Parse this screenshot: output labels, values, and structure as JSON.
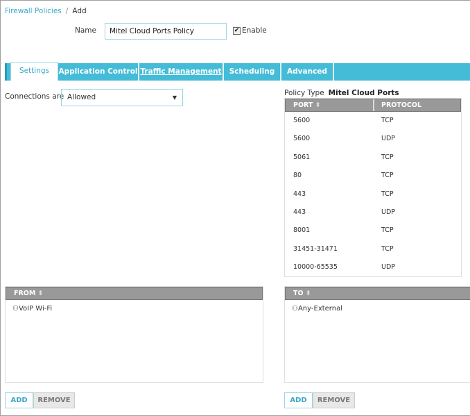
{
  "breadcrumb": {
    "parent": "Firewall Policies",
    "separator": "/",
    "current": "Add"
  },
  "name": {
    "label": "Name",
    "value": "Mitel Cloud Ports Policy"
  },
  "enable": {
    "label": "Enable",
    "checked": true,
    "check_glyph": "✔"
  },
  "tabs": [
    {
      "label": "Settings",
      "active": true
    },
    {
      "label": "Application Control"
    },
    {
      "label": "Traffic Management"
    },
    {
      "label": "Scheduling"
    },
    {
      "label": "Advanced"
    }
  ],
  "connections": {
    "label": "Connections are",
    "value": "Allowed",
    "arrow": "▼"
  },
  "policy_type": {
    "label": "Policy Type",
    "value": "Mitel Cloud Ports"
  },
  "ports": {
    "headers": {
      "port": "PORT",
      "protocol": "PROTOCOL",
      "sort_glyph": "⬍"
    },
    "rows": [
      {
        "port": "5600",
        "protocol": "TCP"
      },
      {
        "port": "5600",
        "protocol": "UDP"
      },
      {
        "port": "5061",
        "protocol": "TCP"
      },
      {
        "port": "80",
        "protocol": "TCP"
      },
      {
        "port": "443",
        "protocol": "TCP"
      },
      {
        "port": "443",
        "protocol": "UDP"
      },
      {
        "port": "8001",
        "protocol": "TCP"
      },
      {
        "port": "31451-31471",
        "protocol": "TCP"
      },
      {
        "port": "10000-65535",
        "protocol": "UDP"
      }
    ]
  },
  "from": {
    "header": "FROM",
    "items": [
      "VoIP Wi-Fi"
    ],
    "add": "ADD",
    "remove": "REMOVE"
  },
  "to": {
    "header": "TO",
    "items": [
      "Any-External"
    ],
    "add": "ADD",
    "remove": "REMOVE"
  },
  "colors": {
    "accent": "#44bcd8",
    "header_gray": "#999999"
  }
}
